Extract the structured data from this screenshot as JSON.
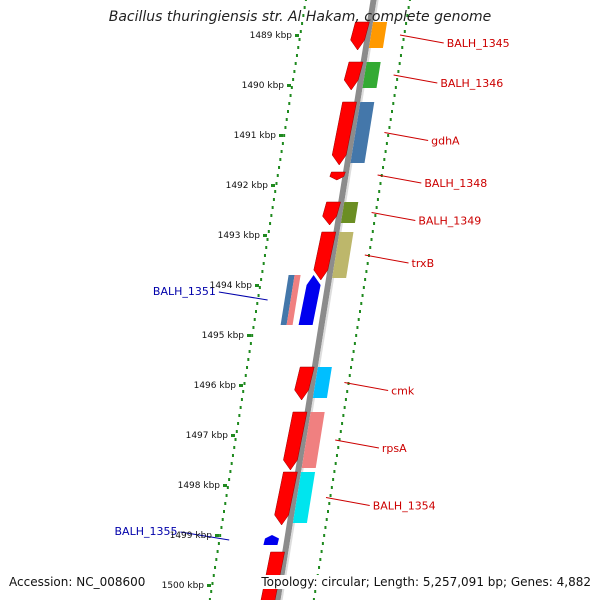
{
  "title": "Bacillus thuringiensis str. Al Hakam, complete genome",
  "footer": {
    "accession": "Accession: NC_008600",
    "info": "Topology: circular; Length: 5,257,091 bp; Genes: 4,882"
  },
  "colors": {
    "kbp_track": "#1f8a1f",
    "backbone": "#8c8c8c",
    "cds": "#ff0000",
    "label_red": "#cc0000",
    "label_blue": "#0000aa"
  },
  "kbp_labels": [
    {
      "text": "1489 kbp",
      "kbp": 1489
    },
    {
      "text": "1490 kbp",
      "kbp": 1490
    },
    {
      "text": "1491 kbp",
      "kbp": 1491
    },
    {
      "text": "1492 kbp",
      "kbp": 1492
    },
    {
      "text": "1493 kbp",
      "kbp": 1493
    },
    {
      "text": "1494 kbp",
      "kbp": 1494
    },
    {
      "text": "1495 kbp",
      "kbp": 1495
    },
    {
      "text": "1496 kbp",
      "kbp": 1496
    },
    {
      "text": "1497 kbp",
      "kbp": 1497
    },
    {
      "text": "1498 kbp",
      "kbp": 1498
    },
    {
      "text": "1499 kbp",
      "kbp": 1499
    },
    {
      "text": "1500 kbp",
      "kbp": 1500
    }
  ],
  "genes": [
    {
      "label": "BALH_1345",
      "side": "right",
      "color": "#cc0000",
      "cog_color": "#ff9900",
      "kbp_start": 1488.7,
      "kbp_end": 1489.3,
      "strand": "+"
    },
    {
      "label": "BALH_1346",
      "side": "right",
      "color": "#cc0000",
      "cog_color": "#33aa33",
      "kbp_start": 1489.5,
      "kbp_end": 1490.1,
      "strand": "+"
    },
    {
      "label": "gdhA",
      "side": "right",
      "color": "#cc0000",
      "cog_color": "#4477aa",
      "kbp_start": 1490.3,
      "kbp_end": 1491.6,
      "strand": "+"
    },
    {
      "label": "BALH_1348",
      "side": "right",
      "color": "#cc0000",
      "cog_color": "",
      "kbp_start": 1491.7,
      "kbp_end": 1491.9,
      "strand": "+"
    },
    {
      "label": "BALH_1349",
      "side": "right",
      "color": "#cc0000",
      "cog_color": "#6b8e23",
      "kbp_start": 1492.3,
      "kbp_end": 1492.8,
      "strand": "+"
    },
    {
      "label": "trxB",
      "side": "right",
      "color": "#cc0000",
      "cog_color": "#bdb76b",
      "kbp_start": 1492.9,
      "kbp_end": 1493.9,
      "strand": "+"
    },
    {
      "label": "BALH_1351",
      "side": "left",
      "color": "#0000aa",
      "cog_color": "#4477aa",
      "kbp_start": 1493.8,
      "kbp_end": 1494.8,
      "strand": "-"
    },
    {
      "label": "cmk",
      "side": "right",
      "color": "#cc0000",
      "cog_color": "#00bfff",
      "kbp_start": 1495.6,
      "kbp_end": 1496.3,
      "strand": "+"
    },
    {
      "label": "rpsA",
      "side": "right",
      "color": "#cc0000",
      "cog_color": "#f08080",
      "kbp_start": 1496.5,
      "kbp_end": 1497.7,
      "strand": "+"
    },
    {
      "label": "BALH_1354",
      "side": "right",
      "color": "#cc0000",
      "cog_color": "#00e5ee",
      "kbp_start": 1497.7,
      "kbp_end": 1498.8,
      "strand": "+"
    },
    {
      "label": "BALH_1355",
      "side": "left",
      "color": "#0000aa",
      "cog_color": "",
      "kbp_start": 1499.0,
      "kbp_end": 1499.2,
      "strand": "-"
    },
    {
      "label": "",
      "side": "right",
      "color": "#cc0000",
      "cog_color": "",
      "kbp_start": 1499.3,
      "kbp_end": 1500.5,
      "strand": "+"
    }
  ]
}
